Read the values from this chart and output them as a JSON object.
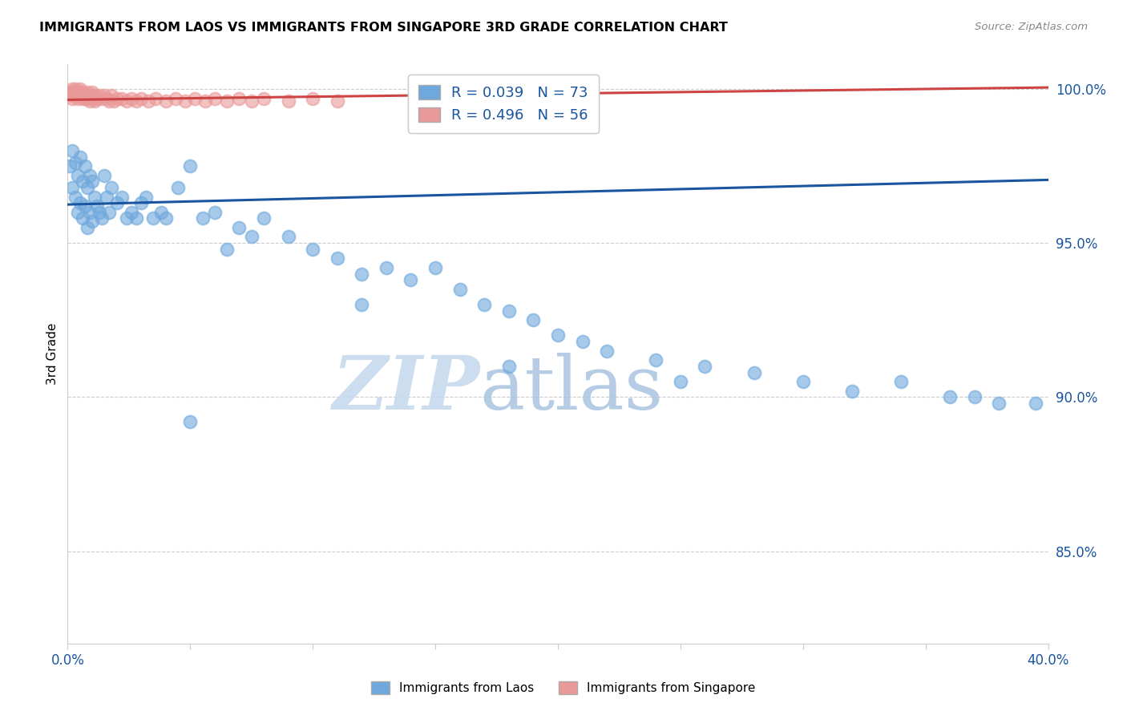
{
  "title": "IMMIGRANTS FROM LAOS VS IMMIGRANTS FROM SINGAPORE 3RD GRADE CORRELATION CHART",
  "source": "Source: ZipAtlas.com",
  "ylabel": "3rd Grade",
  "x_min": 0.0,
  "x_max": 0.4,
  "y_min": 0.82,
  "y_max": 1.008,
  "x_ticks": [
    0.0,
    0.05,
    0.1,
    0.15,
    0.2,
    0.25,
    0.3,
    0.35,
    0.4
  ],
  "x_tick_labels": [
    "0.0%",
    "",
    "",
    "",
    "",
    "",
    "",
    "",
    "40.0%"
  ],
  "y_ticks": [
    0.85,
    0.9,
    0.95,
    1.0
  ],
  "y_tick_labels": [
    "85.0%",
    "90.0%",
    "95.0%",
    "100.0%"
  ],
  "legend_r1": "R = 0.039",
  "legend_n1": "N = 73",
  "legend_r2": "R = 0.496",
  "legend_n2": "N = 56",
  "color_laos": "#6fa8dc",
  "color_singapore": "#ea9999",
  "color_trendline_laos": "#1a56a0",
  "color_trendline_singapore": "#cc4444",
  "color_grid": "#cccccc",
  "color_text_blue": "#1a56a0",
  "color_axis": "#cccccc",
  "watermark_zip": "ZIP",
  "watermark_atlas": "atlas",
  "watermark_color_zip": "#c8ddf0",
  "watermark_color_atlas": "#b8cce4",
  "laos_x": [
    0.001,
    0.002,
    0.002,
    0.003,
    0.003,
    0.004,
    0.004,
    0.005,
    0.005,
    0.006,
    0.006,
    0.007,
    0.007,
    0.008,
    0.008,
    0.009,
    0.009,
    0.01,
    0.01,
    0.011,
    0.012,
    0.013,
    0.014,
    0.015,
    0.016,
    0.017,
    0.018,
    0.02,
    0.022,
    0.024,
    0.026,
    0.028,
    0.03,
    0.032,
    0.035,
    0.038,
    0.04,
    0.045,
    0.05,
    0.055,
    0.06,
    0.065,
    0.07,
    0.075,
    0.08,
    0.09,
    0.1,
    0.11,
    0.12,
    0.13,
    0.14,
    0.15,
    0.16,
    0.17,
    0.18,
    0.19,
    0.2,
    0.21,
    0.22,
    0.24,
    0.26,
    0.28,
    0.3,
    0.32,
    0.34,
    0.36,
    0.38,
    0.395,
    0.05,
    0.12,
    0.18,
    0.25,
    0.37
  ],
  "laos_y": [
    0.975,
    0.98,
    0.968,
    0.976,
    0.965,
    0.972,
    0.96,
    0.978,
    0.963,
    0.97,
    0.958,
    0.975,
    0.962,
    0.968,
    0.955,
    0.972,
    0.96,
    0.97,
    0.957,
    0.965,
    0.962,
    0.96,
    0.958,
    0.972,
    0.965,
    0.96,
    0.968,
    0.963,
    0.965,
    0.958,
    0.96,
    0.958,
    0.963,
    0.965,
    0.958,
    0.96,
    0.958,
    0.968,
    0.975,
    0.958,
    0.96,
    0.948,
    0.955,
    0.952,
    0.958,
    0.952,
    0.948,
    0.945,
    0.94,
    0.942,
    0.938,
    0.942,
    0.935,
    0.93,
    0.928,
    0.925,
    0.92,
    0.918,
    0.915,
    0.912,
    0.91,
    0.908,
    0.905,
    0.902,
    0.905,
    0.9,
    0.898,
    0.898,
    0.892,
    0.93,
    0.91,
    0.905,
    0.9
  ],
  "singapore_x": [
    0.001,
    0.001,
    0.002,
    0.002,
    0.002,
    0.003,
    0.003,
    0.003,
    0.004,
    0.004,
    0.004,
    0.005,
    0.005,
    0.005,
    0.006,
    0.006,
    0.006,
    0.007,
    0.007,
    0.008,
    0.008,
    0.009,
    0.009,
    0.01,
    0.01,
    0.011,
    0.011,
    0.012,
    0.013,
    0.014,
    0.015,
    0.016,
    0.017,
    0.018,
    0.019,
    0.02,
    0.022,
    0.024,
    0.026,
    0.028,
    0.03,
    0.033,
    0.036,
    0.04,
    0.044,
    0.048,
    0.052,
    0.056,
    0.06,
    0.065,
    0.07,
    0.075,
    0.08,
    0.09,
    0.1,
    0.11
  ],
  "singapore_y": [
    0.999,
    0.998,
    1.0,
    0.999,
    0.997,
    1.0,
    0.999,
    0.998,
    0.999,
    0.998,
    0.997,
    1.0,
    0.999,
    0.998,
    0.999,
    0.998,
    0.997,
    0.998,
    0.997,
    0.999,
    0.997,
    0.998,
    0.996,
    0.999,
    0.997,
    0.998,
    0.996,
    0.997,
    0.998,
    0.997,
    0.998,
    0.997,
    0.996,
    0.998,
    0.996,
    0.997,
    0.997,
    0.996,
    0.997,
    0.996,
    0.997,
    0.996,
    0.997,
    0.996,
    0.997,
    0.996,
    0.997,
    0.996,
    0.997,
    0.996,
    0.997,
    0.996,
    0.997,
    0.996,
    0.997,
    0.996
  ],
  "laos_trendline": [
    0.9625,
    0.9705
  ],
  "singapore_trendline": [
    0.9965,
    1.0005
  ]
}
